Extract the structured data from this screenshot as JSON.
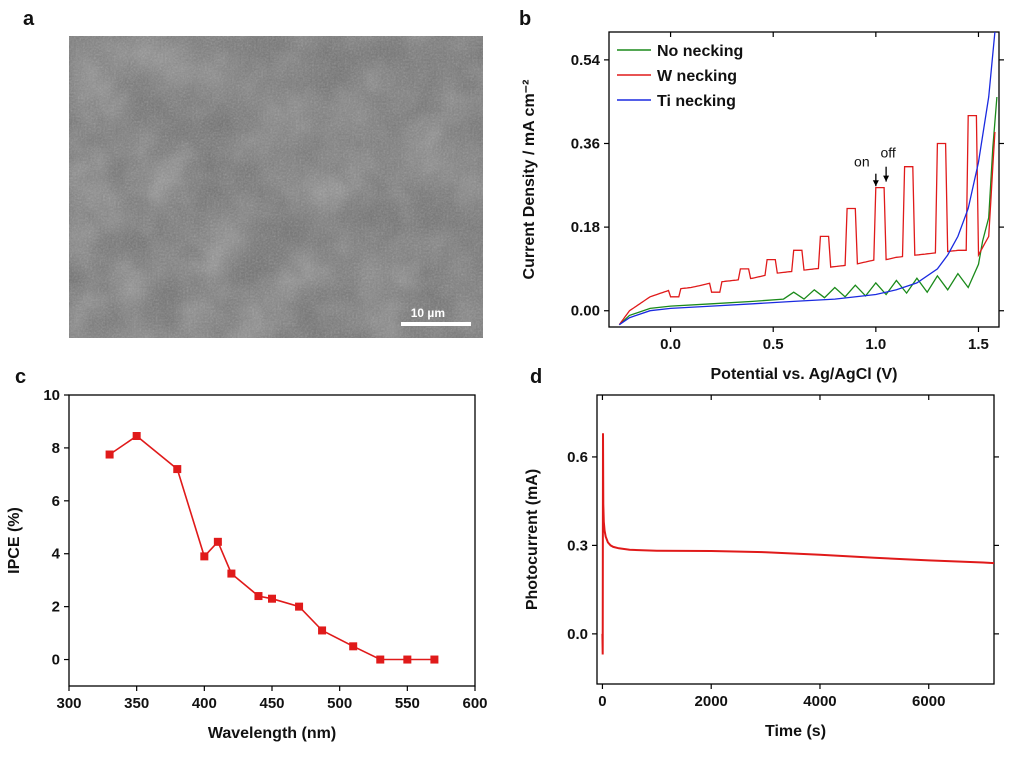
{
  "panels": {
    "a": "a",
    "b": "b",
    "c": "c",
    "d": "d"
  },
  "sem": {
    "scale_bar_label": "10 µm"
  },
  "chart_data": [
    {
      "panel": "b",
      "type": "line",
      "xlabel": "Potential vs. Ag/AgCl (V)",
      "ylabel": "Current Density / mA cm⁻²",
      "xlim": [
        -0.3,
        1.6
      ],
      "ylim": [
        -0.035,
        0.6
      ],
      "xticks": [
        0.0,
        0.5,
        1.0,
        1.5
      ],
      "xtick_labels": [
        "0.0",
        "0.5",
        "1.0",
        "1.5"
      ],
      "yticks": [
        0.0,
        0.18,
        0.36,
        0.54
      ],
      "ytick_labels": [
        "0.00",
        "0.18",
        "0.36",
        "0.54"
      ],
      "legend_position": "top-left",
      "annotations": [
        "on",
        "off"
      ],
      "series": [
        {
          "name": "No necking",
          "color": "#1a8a1a",
          "x": [
            -0.25,
            -0.2,
            -0.1,
            0.0,
            0.2,
            0.4,
            0.55,
            0.6,
            0.65,
            0.7,
            0.75,
            0.8,
            0.85,
            0.9,
            0.95,
            1.0,
            1.05,
            1.1,
            1.15,
            1.2,
            1.25,
            1.3,
            1.35,
            1.4,
            1.45,
            1.5,
            1.52,
            1.55,
            1.57,
            1.59
          ],
          "y": [
            -0.03,
            -0.01,
            0.005,
            0.01,
            0.015,
            0.02,
            0.025,
            0.04,
            0.025,
            0.045,
            0.028,
            0.05,
            0.03,
            0.055,
            0.032,
            0.06,
            0.035,
            0.065,
            0.038,
            0.07,
            0.04,
            0.075,
            0.045,
            0.08,
            0.05,
            0.1,
            0.15,
            0.2,
            0.35,
            0.46
          ]
        },
        {
          "name": "W necking",
          "color": "#e01a1a",
          "x": [
            -0.25,
            -0.2,
            -0.1,
            0.0,
            0.1,
            0.2,
            0.3,
            0.4,
            0.5,
            0.6,
            0.7,
            0.8,
            0.9,
            1.0,
            1.05,
            1.1,
            1.2,
            1.3,
            1.4,
            1.45,
            1.5,
            1.55,
            1.59
          ],
          "y": [
            -0.03,
            0.0,
            0.03,
            0.045,
            0.05,
            0.06,
            0.065,
            0.07,
            0.08,
            0.085,
            0.09,
            0.095,
            0.1,
            0.11,
            0.11,
            0.115,
            0.12,
            0.125,
            0.13,
            0.13,
            0.12,
            0.16,
            0.46
          ]
        },
        {
          "name": "Ti necking",
          "color": "#1a2ae0",
          "x": [
            -0.25,
            -0.2,
            -0.1,
            0.0,
            0.2,
            0.4,
            0.6,
            0.8,
            1.0,
            1.1,
            1.2,
            1.3,
            1.35,
            1.4,
            1.45,
            1.5,
            1.55,
            1.58
          ],
          "y": [
            -0.03,
            -0.015,
            0.0,
            0.005,
            0.01,
            0.015,
            0.02,
            0.025,
            0.035,
            0.045,
            0.06,
            0.09,
            0.12,
            0.16,
            0.22,
            0.32,
            0.46,
            0.6
          ]
        }
      ],
      "chopped_light_on": [
        {
          "x0": 0.0,
          "x1": 0.05,
          "on": 0.03
        },
        {
          "x0": 0.2,
          "x1": 0.25,
          "on": 0.04
        },
        {
          "x0": 0.34,
          "x1": 0.39,
          "on": 0.09
        },
        {
          "x0": 0.47,
          "x1": 0.52,
          "on": 0.11
        },
        {
          "x0": 0.6,
          "x1": 0.65,
          "on": 0.13
        },
        {
          "x0": 0.73,
          "x1": 0.78,
          "on": 0.16
        },
        {
          "x0": 0.86,
          "x1": 0.91,
          "on": 0.22
        },
        {
          "x0": 1.0,
          "x1": 1.05,
          "on": 0.265
        },
        {
          "x0": 1.14,
          "x1": 1.19,
          "on": 0.31
        },
        {
          "x0": 1.3,
          "x1": 1.35,
          "on": 0.36
        },
        {
          "x0": 1.45,
          "x1": 1.5,
          "on": 0.42
        }
      ]
    },
    {
      "panel": "c",
      "type": "line",
      "xlabel": "Wavelength (nm)",
      "ylabel": "IPCE (%)",
      "xlim": [
        300,
        600
      ],
      "ylim": [
        -1,
        10
      ],
      "xticks": [
        300,
        350,
        400,
        450,
        500,
        550,
        600
      ],
      "yticks": [
        0,
        2,
        4,
        6,
        8,
        10
      ],
      "series": [
        {
          "color": "#e01a1a",
          "x": [
            330,
            350,
            380,
            400,
            410,
            420,
            440,
            450,
            470,
            487,
            510,
            530,
            550,
            570
          ],
          "y": [
            7.75,
            8.45,
            7.2,
            3.9,
            4.45,
            3.25,
            2.4,
            2.3,
            2.0,
            1.1,
            0.5,
            0.0,
            0.0,
            0.0
          ]
        }
      ]
    },
    {
      "panel": "d",
      "type": "line",
      "xlabel": "Time (s)",
      "ylabel": "Photocurrent (mA)",
      "xlim": [
        -100,
        7200
      ],
      "ylim": [
        -0.17,
        0.81
      ],
      "xticks": [
        0,
        2000,
        4000,
        6000
      ],
      "yticks": [
        0.0,
        0.3,
        0.6
      ],
      "yticklabels": [
        "0.0",
        "0.3",
        "0.6"
      ],
      "series": [
        {
          "color": "#e01a1a",
          "x": [
            0,
            5,
            10,
            15,
            25,
            40,
            60,
            100,
            150,
            200,
            300,
            500,
            800,
            1000,
            2000,
            3000,
            4000,
            5000,
            6000,
            7000,
            7200
          ],
          "y": [
            0.0,
            -0.07,
            0.68,
            0.44,
            0.38,
            0.35,
            0.33,
            0.31,
            0.3,
            0.295,
            0.29,
            0.285,
            0.283,
            0.282,
            0.281,
            0.277,
            0.268,
            0.258,
            0.249,
            0.242,
            0.24
          ]
        }
      ]
    }
  ]
}
